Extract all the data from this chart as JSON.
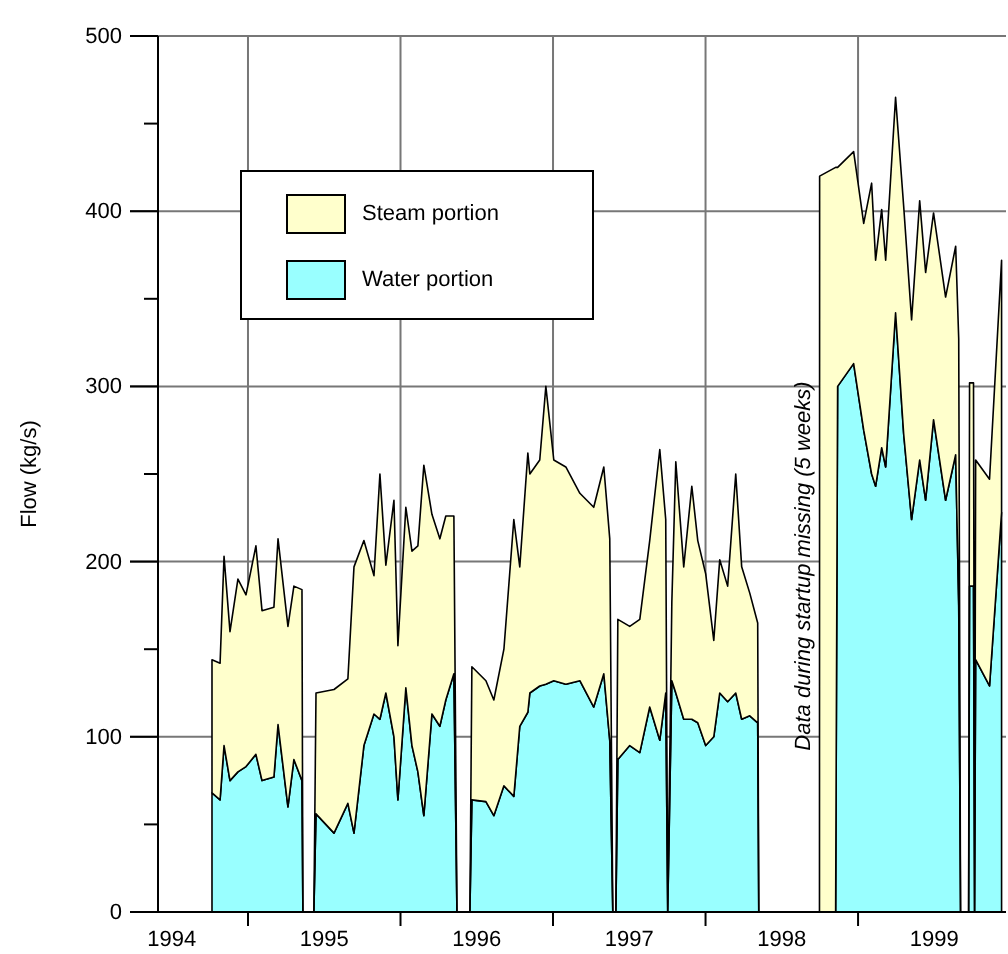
{
  "chart_data": {
    "type": "area",
    "stacked": true,
    "ylabel": "Flow (kg/s)",
    "x": [
      1994.764,
      1994.817,
      1994.843,
      1994.882,
      1994.934,
      1994.987,
      1995.052,
      1995.092,
      1995.17,
      1995.197,
      1995.262,
      1995.301,
      1995.354,
      1995.36,
      1995.432,
      1995.446,
      1995.564,
      1995.655,
      1995.695,
      1995.76,
      1995.826,
      1995.865,
      1995.904,
      1995.957,
      1995.983,
      1996.035,
      1996.075,
      1996.114,
      1996.153,
      1996.206,
      1996.258,
      1996.297,
      1996.35,
      1996.37,
      1996.455,
      1996.468,
      1996.56,
      1996.612,
      1996.678,
      1996.743,
      1996.782,
      1996.835,
      1996.848,
      1996.913,
      1996.953,
      1997.005,
      1997.084,
      1997.176,
      1997.267,
      1997.333,
      1997.372,
      1997.392,
      1997.412,
      1997.425,
      1997.503,
      1997.569,
      1997.634,
      1997.7,
      1997.739,
      1997.752,
      1997.779,
      1997.805,
      1997.857,
      1997.91,
      1997.949,
      1998.001,
      1998.054,
      1998.093,
      1998.145,
      1998.198,
      1998.237,
      1998.29,
      1998.342,
      1998.349,
      1998.747,
      1998.748,
      1998.853,
      1998.866,
      1998.971,
      1999.037,
      1999.089,
      1999.115,
      1999.155,
      1999.181,
      1999.246,
      1999.299,
      1999.351,
      1999.404,
      1999.443,
      1999.495,
      1999.574,
      1999.64,
      1999.66,
      1999.672,
      1999.725,
      1999.731,
      1999.757,
      1999.764,
      1999.771,
      1999.862,
      1999.941
    ],
    "series": [
      {
        "name": "Water portion",
        "color": "#99ffff",
        "values": [
          68,
          64,
          95,
          75,
          80,
          83,
          90,
          75,
          77,
          107,
          60,
          87,
          75,
          0,
          0,
          56,
          45,
          62,
          45,
          95,
          113,
          110,
          125,
          100,
          64,
          128,
          95,
          80,
          55,
          113,
          106,
          121,
          136,
          0,
          0,
          64,
          63,
          55,
          72,
          66,
          106,
          114,
          125,
          129,
          130,
          132,
          130,
          132,
          117,
          136,
          98,
          0,
          0,
          87,
          95,
          91,
          117,
          98,
          125,
          0,
          132,
          125,
          110,
          110,
          108,
          95,
          100,
          125,
          120,
          125,
          110,
          112,
          108,
          0,
          0,
          0,
          0,
          300,
          313,
          275,
          250,
          243,
          265,
          254,
          342,
          273,
          224,
          258,
          235,
          281,
          235,
          261,
          175,
          0,
          0,
          186,
          186,
          0,
          144,
          129,
          228
        ]
      },
      {
        "name": "Steam portion",
        "color": "#ffffcc",
        "values": [
          76,
          78,
          108,
          85,
          110,
          98,
          119,
          97,
          97,
          106,
          103,
          99,
          109,
          0,
          0,
          69,
          82,
          71,
          152,
          117,
          79,
          140,
          73,
          135,
          88,
          103,
          111,
          129,
          200,
          114,
          107,
          105,
          90,
          0,
          0,
          76,
          69,
          66,
          78,
          158,
          91,
          148,
          125,
          129,
          170,
          126,
          124,
          107,
          114,
          118,
          115,
          0,
          0,
          80,
          68,
          76,
          95,
          166,
          99,
          0,
          45,
          132,
          87,
          133,
          104,
          98,
          55,
          76,
          66,
          125,
          87,
          70,
          57,
          0,
          0,
          420,
          425,
          125,
          121,
          118,
          166,
          129,
          136,
          118,
          123,
          130,
          114,
          148,
          130,
          118,
          116,
          119,
          152,
          0,
          0,
          116,
          116,
          0,
          114,
          118,
          144
        ]
      }
    ],
    "xlim": [
      1994.41,
      1999.97
    ],
    "xticks": [
      {
        "value": 1994.5,
        "label": "1994"
      },
      {
        "value": 1995,
        "label": null
      },
      {
        "value": 1995.5,
        "label": "1995"
      },
      {
        "value": 1996,
        "label": null
      },
      {
        "value": 1996.5,
        "label": "1996"
      },
      {
        "value": 1997,
        "label": null
      },
      {
        "value": 1997.5,
        "label": "1997"
      },
      {
        "value": 1998,
        "label": null
      },
      {
        "value": 1998.5,
        "label": "1998"
      },
      {
        "value": 1999,
        "label": null
      },
      {
        "value": 1999.5,
        "label": "1999"
      }
    ],
    "ylim": [
      0,
      500
    ],
    "yticks": [
      0,
      {
        "value": 50,
        "label": null
      },
      100,
      {
        "value": 150,
        "label": null
      },
      200,
      {
        "value": 250,
        "label": null
      },
      300,
      {
        "value": 350,
        "label": null
      },
      400,
      {
        "value": 450,
        "label": null
      },
      500
    ],
    "grid": true,
    "legend": "top left",
    "annotations": [
      "Data during startup missing (5 weeks)"
    ]
  }
}
